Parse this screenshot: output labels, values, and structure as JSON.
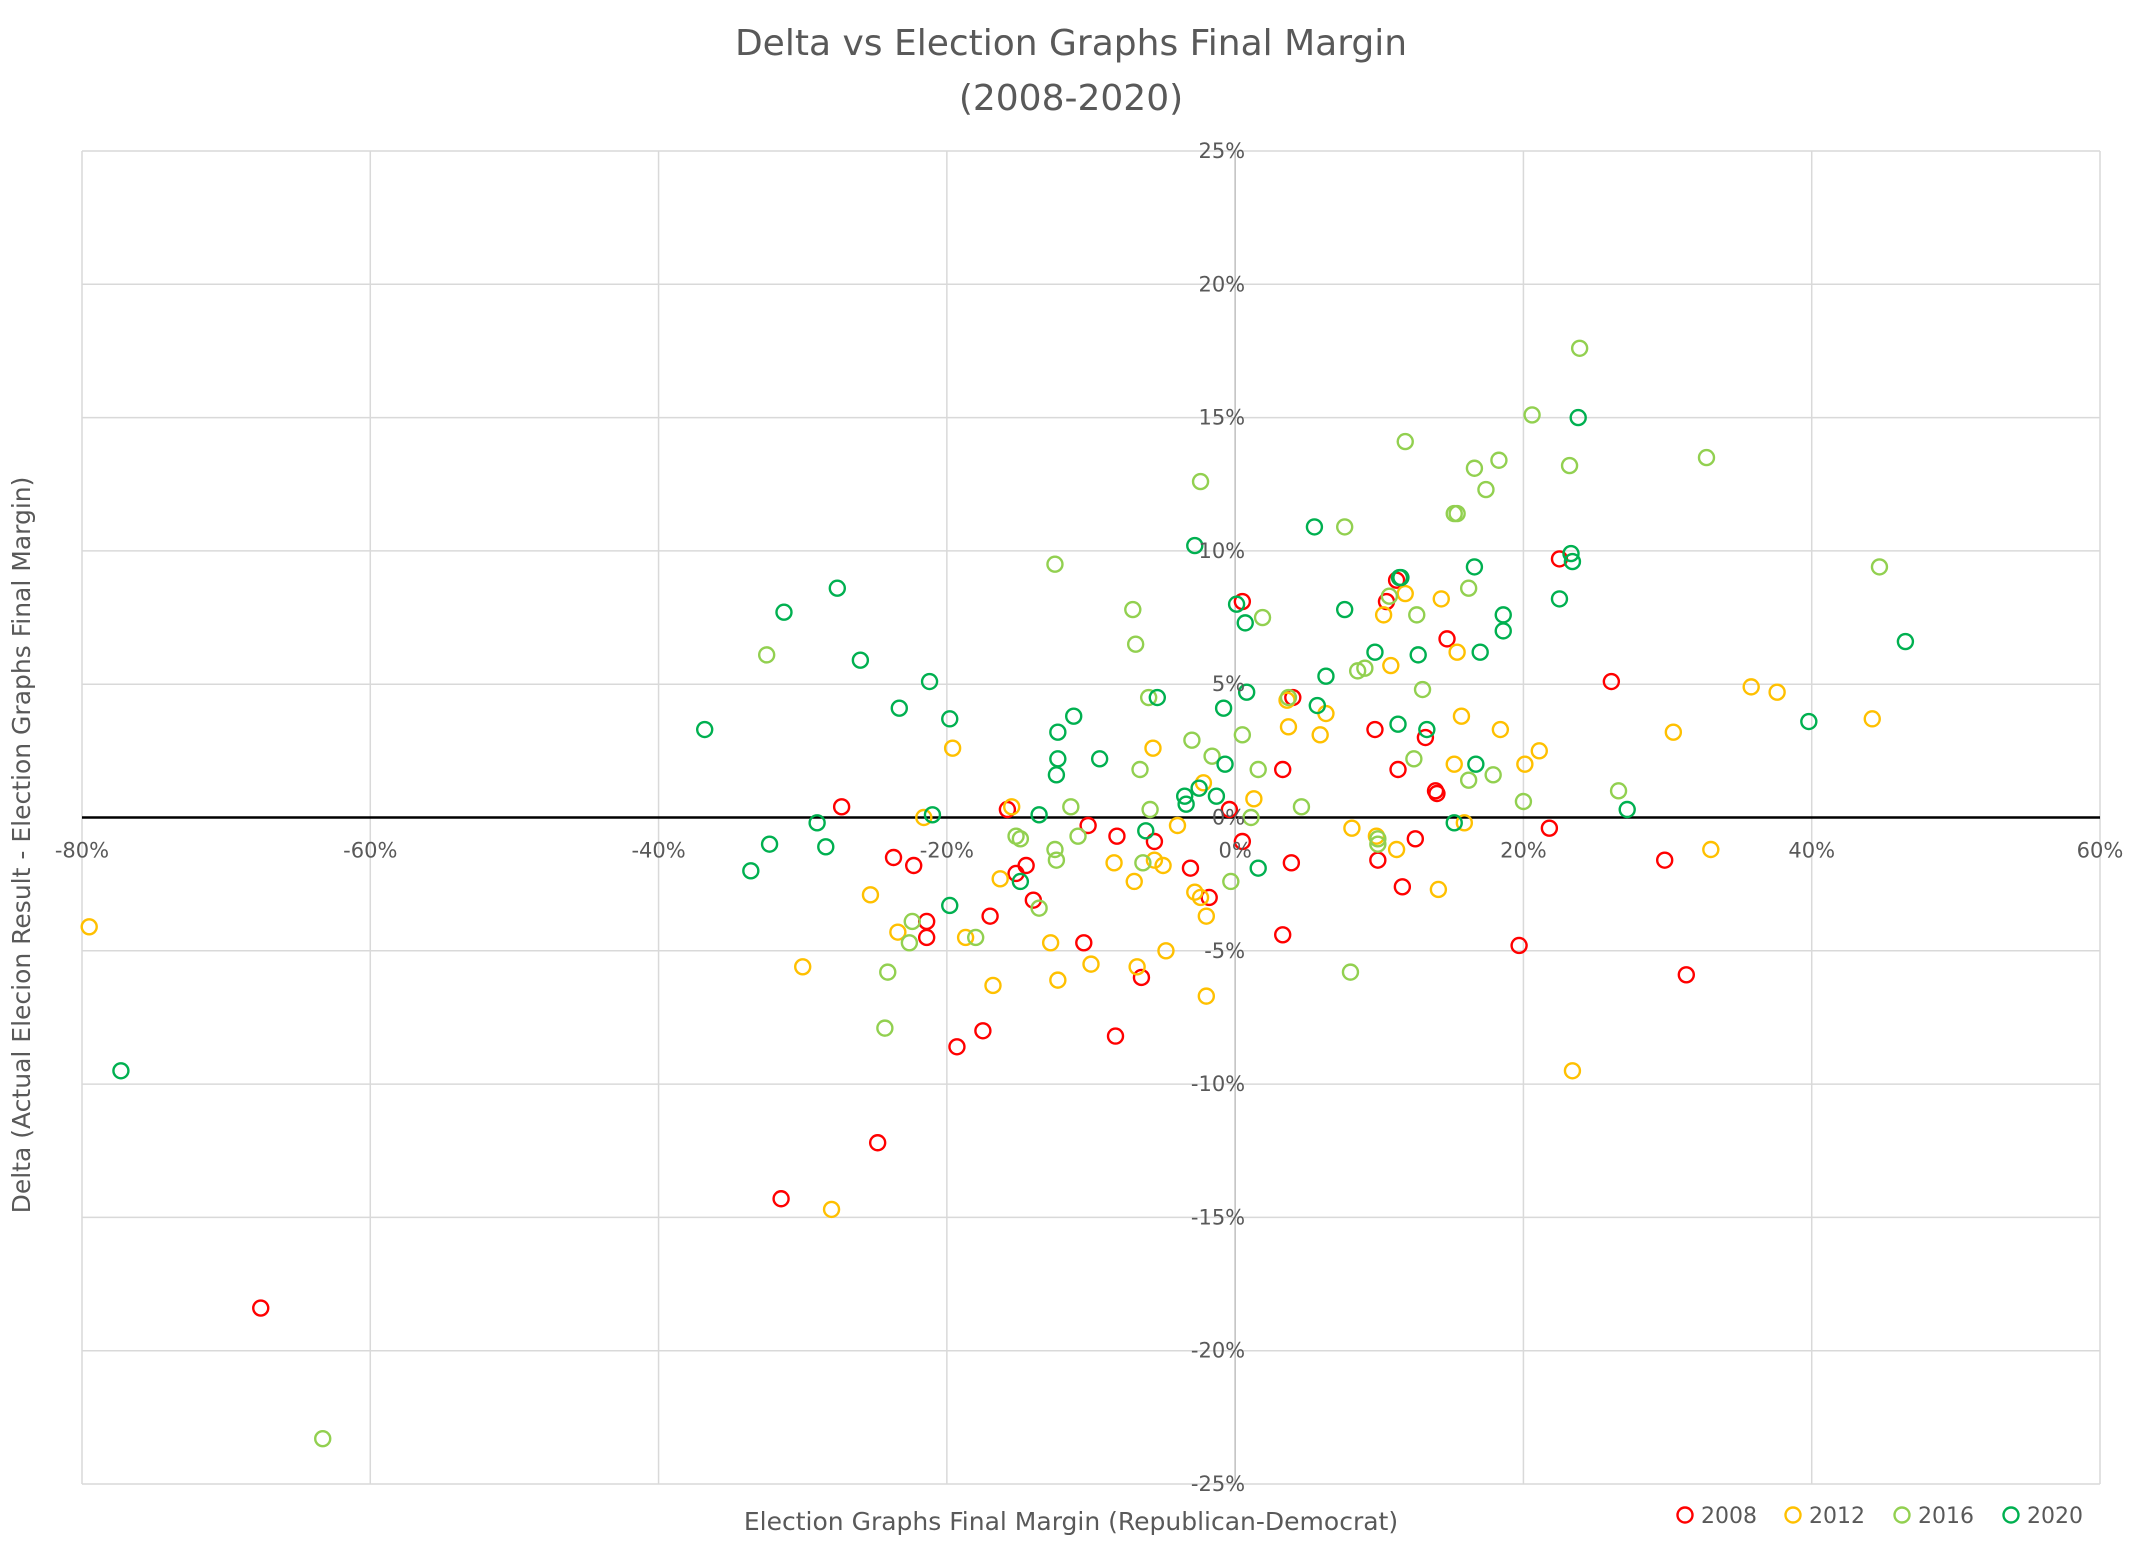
{
  "chart_data": {
    "type": "scatter",
    "title_line1": "Delta vs Election Graphs Final Margin",
    "title_line2": "(2008-2020)",
    "xlabel": "Election Graphs Final Margin (Republican-Democrat)",
    "ylabel": "Delta (Actual Elecion Result - Election Graphs Final Margin)",
    "xlim": [
      -80,
      60
    ],
    "ylim": [
      -25,
      25
    ],
    "x_ticks": [
      -80,
      -60,
      -40,
      -20,
      0,
      20,
      40,
      60
    ],
    "y_ticks": [
      -25,
      -20,
      -15,
      -10,
      -5,
      0,
      5,
      10,
      15,
      20,
      25
    ],
    "x_tick_labels": [
      "-80%",
      "-60%",
      "-40%",
      "-20%",
      "0%",
      "20%",
      "40%",
      "60%"
    ],
    "y_tick_labels": [
      "-25%",
      "-20%",
      "-15%",
      "-10%",
      "-5%",
      "0%",
      "5%",
      "10%",
      "15%",
      "20%",
      "25%"
    ],
    "grid": true,
    "legend_position": "bottom-right",
    "series": [
      {
        "name": "2008",
        "color": "#ff0000",
        "points": [
          [
            -67.6,
            -18.4
          ],
          [
            -31.5,
            -14.3
          ],
          [
            -24.8,
            -12.2
          ],
          [
            -19.3,
            -8.6
          ],
          [
            -17.5,
            -8.0
          ],
          [
            -8.3,
            -8.2
          ],
          [
            -6.5,
            -6.0
          ],
          [
            -10.5,
            -4.7
          ],
          [
            -14.0,
            -3.1
          ],
          [
            -17.0,
            -3.7
          ],
          [
            -21.4,
            -3.9
          ],
          [
            -21.4,
            -4.5
          ],
          [
            -22.3,
            -1.8
          ],
          [
            -23.7,
            -1.5
          ],
          [
            -27.3,
            0.4
          ],
          [
            -15.8,
            0.3
          ],
          [
            -14.5,
            -1.8
          ],
          [
            -15.2,
            -2.1
          ],
          [
            -10.2,
            -0.3
          ],
          [
            -8.2,
            -0.7
          ],
          [
            -5.6,
            -0.9
          ],
          [
            -3.1,
            -1.9
          ],
          [
            -1.8,
            -3.0
          ],
          [
            -0.4,
            0.3
          ],
          [
            0.5,
            -0.9
          ],
          [
            0.5,
            8.1
          ],
          [
            3.3,
            1.8
          ],
          [
            4.0,
            4.5
          ],
          [
            3.9,
            -1.7
          ],
          [
            3.3,
            -4.4
          ],
          [
            9.7,
            3.3
          ],
          [
            9.9,
            -1.6
          ],
          [
            10.5,
            8.1
          ],
          [
            11.2,
            8.9
          ],
          [
            11.3,
            1.8
          ],
          [
            11.6,
            -2.6
          ],
          [
            12.5,
            -0.8
          ],
          [
            13.2,
            3.0
          ],
          [
            13.9,
            1.0
          ],
          [
            14.0,
            0.9
          ],
          [
            14.7,
            6.7
          ],
          [
            21.8,
            -0.4
          ],
          [
            22.5,
            9.7
          ],
          [
            19.7,
            -4.8
          ],
          [
            26.1,
            5.1
          ],
          [
            29.8,
            -1.6
          ],
          [
            31.3,
            -5.9
          ]
        ]
      },
      {
        "name": "2012",
        "color": "#ffc000",
        "points": [
          [
            -79.5,
            -4.1
          ],
          [
            -28.0,
            -14.7
          ],
          [
            -30.0,
            -5.6
          ],
          [
            -25.3,
            -2.9
          ],
          [
            -23.4,
            -4.3
          ],
          [
            -21.6,
            0.0
          ],
          [
            -19.6,
            2.6
          ],
          [
            -18.7,
            -4.5
          ],
          [
            -16.8,
            -6.3
          ],
          [
            -16.3,
            -2.3
          ],
          [
            -15.5,
            0.4
          ],
          [
            -12.8,
            -4.7
          ],
          [
            -12.3,
            -6.1
          ],
          [
            -10.0,
            -5.5
          ],
          [
            -8.4,
            -1.7
          ],
          [
            -7.0,
            -2.4
          ],
          [
            -6.8,
            -5.6
          ],
          [
            -5.7,
            2.6
          ],
          [
            -5.6,
            -1.6
          ],
          [
            -5.0,
            -1.8
          ],
          [
            -4.0,
            -0.3
          ],
          [
            -4.8,
            -5.0
          ],
          [
            -2.8,
            -2.8
          ],
          [
            -2.4,
            -3.0
          ],
          [
            -2.2,
            1.3
          ],
          [
            -2.0,
            -3.7
          ],
          [
            -2.0,
            -6.7
          ],
          [
            1.3,
            0.7
          ],
          [
            3.7,
            3.4
          ],
          [
            3.6,
            4.4
          ],
          [
            5.9,
            3.1
          ],
          [
            6.3,
            3.9
          ],
          [
            8.1,
            -0.4
          ],
          [
            9.8,
            -0.7
          ],
          [
            10.3,
            7.6
          ],
          [
            10.8,
            5.7
          ],
          [
            11.2,
            -1.2
          ],
          [
            11.8,
            8.4
          ],
          [
            14.3,
            8.2
          ],
          [
            14.1,
            -2.7
          ],
          [
            15.2,
            2.0
          ],
          [
            15.4,
            6.2
          ],
          [
            15.7,
            3.8
          ],
          [
            15.9,
            -0.2
          ],
          [
            18.4,
            3.3
          ],
          [
            20.1,
            2.0
          ],
          [
            21.1,
            2.5
          ],
          [
            23.4,
            -9.5
          ],
          [
            30.4,
            3.2
          ],
          [
            33.0,
            -1.2
          ],
          [
            35.8,
            4.9
          ],
          [
            37.6,
            4.7
          ],
          [
            44.2,
            3.7
          ]
        ]
      },
      {
        "name": "2016",
        "color": "#92d050",
        "points": [
          [
            -63.3,
            -23.3
          ],
          [
            -32.5,
            6.1
          ],
          [
            -24.3,
            -7.9
          ],
          [
            -24.1,
            -5.8
          ],
          [
            -22.6,
            -4.7
          ],
          [
            -22.4,
            -3.9
          ],
          [
            -18.0,
            -4.5
          ],
          [
            -15.2,
            -0.7
          ],
          [
            -14.9,
            -0.8
          ],
          [
            -13.6,
            -3.4
          ],
          [
            -12.5,
            -1.2
          ],
          [
            -12.4,
            -1.6
          ],
          [
            -12.5,
            9.5
          ],
          [
            -11.4,
            0.4
          ],
          [
            -10.9,
            -0.7
          ],
          [
            -7.1,
            7.8
          ],
          [
            -6.9,
            6.5
          ],
          [
            -6.6,
            1.8
          ],
          [
            -6.4,
            -1.7
          ],
          [
            -6.0,
            4.5
          ],
          [
            -5.9,
            0.3
          ],
          [
            -3.0,
            2.9
          ],
          [
            -2.4,
            12.6
          ],
          [
            -1.6,
            2.3
          ],
          [
            -0.3,
            -2.4
          ],
          [
            0.5,
            3.1
          ],
          [
            1.1,
            0.0
          ],
          [
            1.6,
            1.8
          ],
          [
            1.9,
            7.5
          ],
          [
            3.7,
            4.5
          ],
          [
            4.6,
            0.4
          ],
          [
            7.6,
            10.9
          ],
          [
            8.0,
            -5.8
          ],
          [
            8.5,
            5.5
          ],
          [
            9.0,
            5.6
          ],
          [
            9.9,
            -0.8
          ],
          [
            9.9,
            -1.0
          ],
          [
            10.7,
            8.3
          ],
          [
            11.8,
            14.1
          ],
          [
            12.4,
            2.2
          ],
          [
            12.6,
            7.6
          ],
          [
            13.0,
            4.8
          ],
          [
            15.2,
            11.4
          ],
          [
            15.4,
            11.4
          ],
          [
            16.2,
            8.6
          ],
          [
            16.2,
            1.4
          ],
          [
            16.6,
            13.1
          ],
          [
            17.4,
            12.3
          ],
          [
            17.9,
            1.6
          ],
          [
            18.3,
            13.4
          ],
          [
            20.0,
            0.6
          ],
          [
            20.6,
            15.1
          ],
          [
            23.2,
            13.2
          ],
          [
            23.9,
            17.6
          ],
          [
            26.6,
            1.0
          ],
          [
            32.7,
            13.5
          ],
          [
            44.7,
            9.4
          ]
        ]
      },
      {
        "name": "2020",
        "color": "#00b050",
        "points": [
          [
            -77.3,
            -9.5
          ],
          [
            -36.8,
            3.3
          ],
          [
            -33.6,
            -2.0
          ],
          [
            -32.3,
            -1.0
          ],
          [
            -31.3,
            7.7
          ],
          [
            -29.0,
            -0.2
          ],
          [
            -28.4,
            -1.1
          ],
          [
            -27.6,
            8.6
          ],
          [
            -26.0,
            5.9
          ],
          [
            -23.3,
            4.1
          ],
          [
            -21.2,
            5.1
          ],
          [
            -21.0,
            0.1
          ],
          [
            -19.8,
            3.7
          ],
          [
            -19.8,
            -3.3
          ],
          [
            -14.9,
            -2.4
          ],
          [
            -13.6,
            0.1
          ],
          [
            -12.4,
            1.6
          ],
          [
            -12.3,
            2.2
          ],
          [
            -12.3,
            3.2
          ],
          [
            -11.2,
            3.8
          ],
          [
            -9.4,
            2.2
          ],
          [
            -6.2,
            -0.5
          ],
          [
            -5.4,
            4.5
          ],
          [
            -3.5,
            0.8
          ],
          [
            -3.4,
            0.5
          ],
          [
            -2.5,
            1.1
          ],
          [
            -2.8,
            10.2
          ],
          [
            -1.3,
            0.8
          ],
          [
            -0.8,
            4.1
          ],
          [
            -0.7,
            2.0
          ],
          [
            0.1,
            8.0
          ],
          [
            0.7,
            7.3
          ],
          [
            0.8,
            4.7
          ],
          [
            1.6,
            -1.9
          ],
          [
            5.5,
            10.9
          ],
          [
            5.7,
            4.2
          ],
          [
            6.3,
            5.3
          ],
          [
            7.6,
            7.8
          ],
          [
            9.7,
            6.2
          ],
          [
            11.3,
            3.5
          ],
          [
            11.4,
            9.0
          ],
          [
            11.5,
            9.0
          ],
          [
            12.7,
            6.1
          ],
          [
            13.3,
            3.3
          ],
          [
            15.2,
            -0.2
          ],
          [
            16.6,
            9.4
          ],
          [
            16.7,
            2.0
          ],
          [
            17.0,
            6.2
          ],
          [
            18.6,
            7.0
          ],
          [
            18.6,
            7.6
          ],
          [
            22.5,
            8.2
          ],
          [
            23.3,
            9.9
          ],
          [
            23.4,
            9.6
          ],
          [
            23.8,
            15.0
          ],
          [
            27.2,
            0.3
          ],
          [
            39.8,
            3.6
          ],
          [
            46.5,
            6.6
          ]
        ]
      }
    ]
  }
}
